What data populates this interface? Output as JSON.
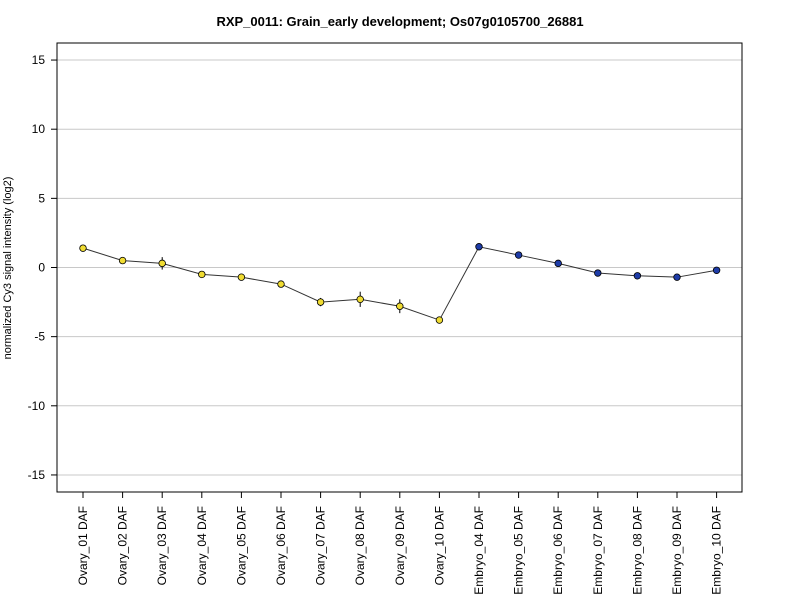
{
  "chart_data": {
    "type": "line",
    "title": "RXP_0011: Grain_early development; Os07g0105700_26881",
    "xlabel": "",
    "ylabel": "normalized Cy3 signal intensity (log2)",
    "ylim": [
      -16,
      16
    ],
    "yticks": [
      15,
      10,
      5,
      0,
      -5,
      -10,
      -15
    ],
    "ytick_labels": [
      "15",
      "10",
      "5",
      "0",
      "-5",
      "-10",
      "-15"
    ],
    "grid": "horizontal",
    "categories": [
      "Ovary_01 DAF",
      "Ovary_02 DAF",
      "Ovary_03 DAF",
      "Ovary_04 DAF",
      "Ovary_05 DAF",
      "Ovary_06 DAF",
      "Ovary_07 DAF",
      "Ovary_08 DAF",
      "Ovary_09 DAF",
      "Ovary_10 DAF",
      "Embryo_04 DAF",
      "Embryo_05 DAF",
      "Embryo_06 DAF",
      "Embryo_07 DAF",
      "Embryo_08 DAF",
      "Embryo_09 DAF",
      "Embryo_10 DAF"
    ],
    "values": [
      1.4,
      0.5,
      0.3,
      -0.5,
      -0.7,
      -1.2,
      -2.5,
      -2.3,
      -2.8,
      -3.8,
      1.5,
      0.9,
      0.3,
      -0.4,
      -0.6,
      -0.7,
      -0.2
    ],
    "error": [
      0.1,
      0.1,
      0.45,
      0.1,
      0.1,
      0.25,
      0.3,
      0.55,
      0.5,
      0.15,
      0.1,
      0.1,
      0.1,
      0.1,
      0.1,
      0.1,
      0.1
    ],
    "point_colors": [
      "#f0dc32",
      "#f0dc32",
      "#f0dc32",
      "#f0dc32",
      "#f0dc32",
      "#f0dc32",
      "#f0dc32",
      "#f0dc32",
      "#f0dc32",
      "#f0dc32",
      "#1e3ca8",
      "#1e3ca8",
      "#1e3ca8",
      "#1e3ca8",
      "#1e3ca8",
      "#1e3ca8",
      "#1e3ca8"
    ]
  }
}
